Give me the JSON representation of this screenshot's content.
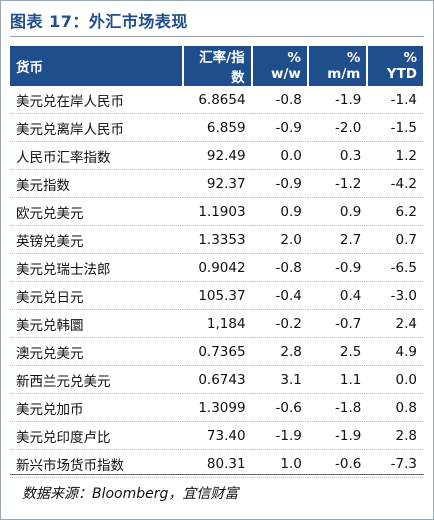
{
  "title": "图表 17：外汇市场表现",
  "table": {
    "headers": [
      "货币",
      "汇率/指数",
      "% w/w",
      "% m/m",
      "% YTD"
    ],
    "rows": [
      [
        "美元兑在岸人民币",
        "6.8654",
        "-0.8",
        "-1.9",
        "-1.4"
      ],
      [
        "美元兑离岸人民币",
        "6.859",
        "-0.9",
        "-2.0",
        "-1.5"
      ],
      [
        "人民币汇率指数",
        "92.49",
        "0.0",
        "0.3",
        "1.2"
      ],
      [
        "美元指数",
        "92.37",
        "-0.9",
        "-1.2",
        "-4.2"
      ],
      [
        "欧元兑美元",
        "1.1903",
        "0.9",
        "0.9",
        "6.2"
      ],
      [
        "英镑兑美元",
        "1.3353",
        "2.0",
        "2.7",
        "0.7"
      ],
      [
        "美元兑瑞士法郎",
        "0.9042",
        "-0.8",
        "-0.9",
        "-6.5"
      ],
      [
        "美元兑日元",
        "105.37",
        "-0.4",
        "0.4",
        "-3.0"
      ],
      [
        "美元兑韩圜",
        "1,184",
        "-0.2",
        "-0.7",
        "2.4"
      ],
      [
        "澳元兑美元",
        "0.7365",
        "2.8",
        "2.5",
        "4.9"
      ],
      [
        "新西兰元兑美元",
        "0.6743",
        "3.1",
        "1.1",
        "0.0"
      ],
      [
        "美元兑加币",
        "1.3099",
        "-0.6",
        "-1.8",
        "0.8"
      ],
      [
        "美元兑印度卢比",
        "73.40",
        "-1.9",
        "-1.9",
        "2.8"
      ],
      [
        "新兴市场货币指数",
        "80.31",
        "1.0",
        "-0.6",
        "-7.3"
      ]
    ]
  },
  "source": "数据来源：Bloomberg，宜信财富",
  "colors": {
    "header_bg": "#1f4e8c",
    "title": "#1f4e8c"
  }
}
